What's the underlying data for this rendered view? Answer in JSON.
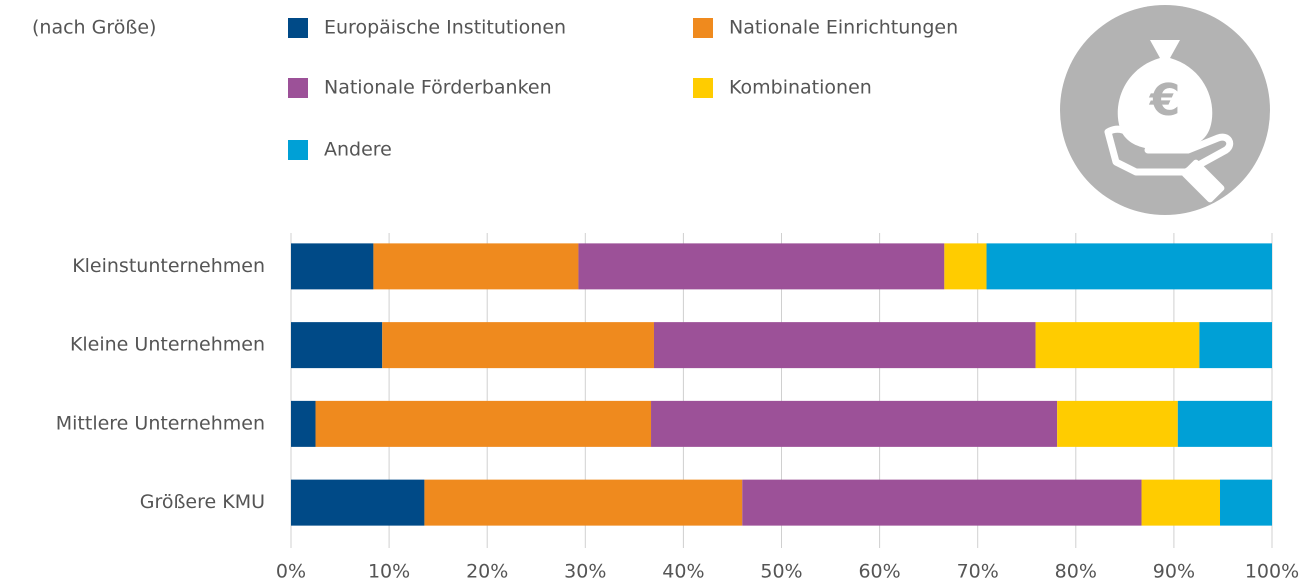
{
  "chart_data": {
    "type": "stacked_barh",
    "subtitle": "(nach Größe)",
    "categories": [
      "Kleinstunternehmen",
      "Kleine Unternehmen",
      "Mittlere Unternehmen",
      "Größere KMU"
    ],
    "series": [
      {
        "name": "Europäische Institutionen",
        "color": "#004a87",
        "values": [
          8.4,
          9.3,
          2.5,
          13.6
        ]
      },
      {
        "name": "Nationale Einrichtungen",
        "color": "#ef8a1e",
        "values": [
          20.9,
          27.7,
          34.2,
          32.4
        ]
      },
      {
        "name": "Nationale Förderbanken",
        "color": "#9c5198",
        "values": [
          37.3,
          38.9,
          41.4,
          40.7
        ]
      },
      {
        "name": "Kombinationen",
        "color": "#ffcc00",
        "values": [
          4.3,
          16.7,
          12.3,
          8.0
        ]
      },
      {
        "name": "Andere",
        "color": "#00a0d6",
        "values": [
          29.1,
          7.4,
          9.6,
          5.3
        ]
      }
    ],
    "xlim": [
      0,
      100
    ],
    "xticks": [
      {
        "value": 0,
        "label": "0%"
      },
      {
        "value": 10,
        "label": "10%"
      },
      {
        "value": 20,
        "label": "20%"
      },
      {
        "value": 30,
        "label": "30%"
      },
      {
        "value": 40,
        "label": "40%"
      },
      {
        "value": 50,
        "label": "50%"
      },
      {
        "value": 60,
        "label": "60%"
      },
      {
        "value": 70,
        "label": "70%"
      },
      {
        "value": 80,
        "label": "80%"
      },
      {
        "value": 90,
        "label": "90%"
      },
      {
        "value": 100,
        "label": "100%"
      }
    ],
    "grid": true
  }
}
